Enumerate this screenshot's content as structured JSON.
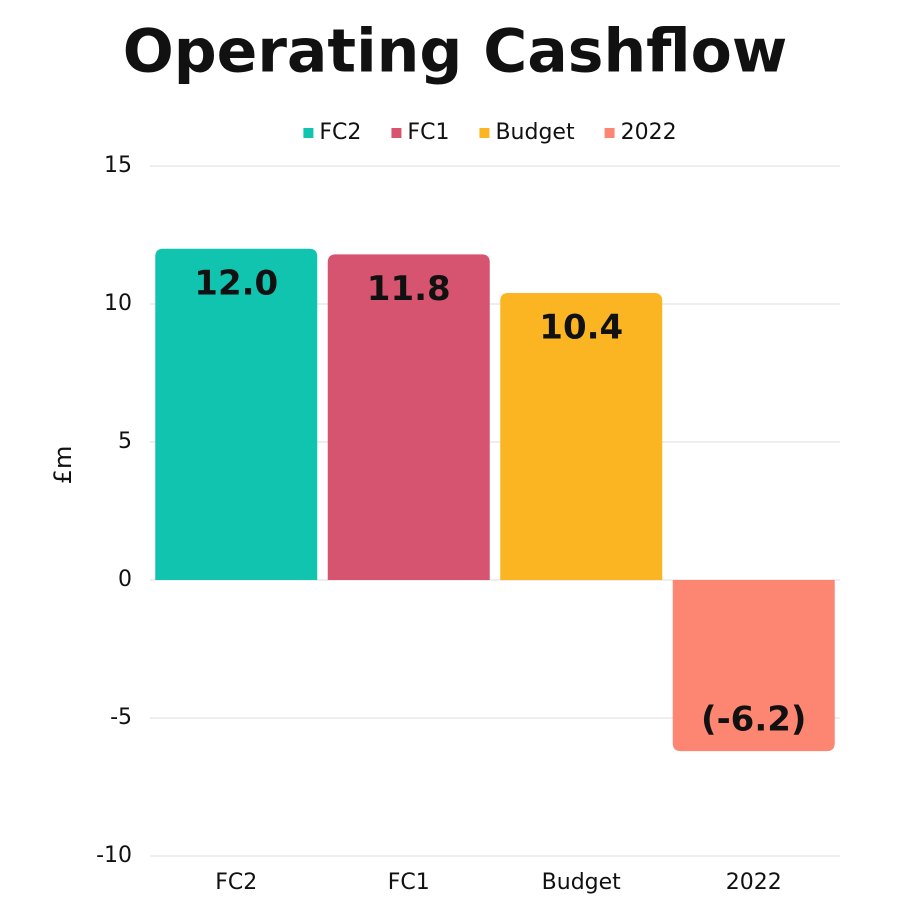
{
  "chart_data": {
    "type": "bar",
    "title": "Operating Cashflow",
    "y_label": "£m",
    "categories": [
      "FC2",
      "FC1",
      "Budget",
      "2022"
    ],
    "values": [
      12.0,
      11.8,
      10.4,
      -6.2
    ],
    "value_labels": [
      "12.0",
      "11.8",
      "10.4",
      "(-6.2)"
    ],
    "colors": [
      "#10c4b0",
      "#d65470",
      "#fbb523",
      "#fd8673"
    ],
    "ylim": [
      -10,
      15
    ],
    "yticks": [
      -10,
      -5,
      0,
      5,
      10,
      15
    ],
    "grid": true,
    "legend": "top"
  }
}
